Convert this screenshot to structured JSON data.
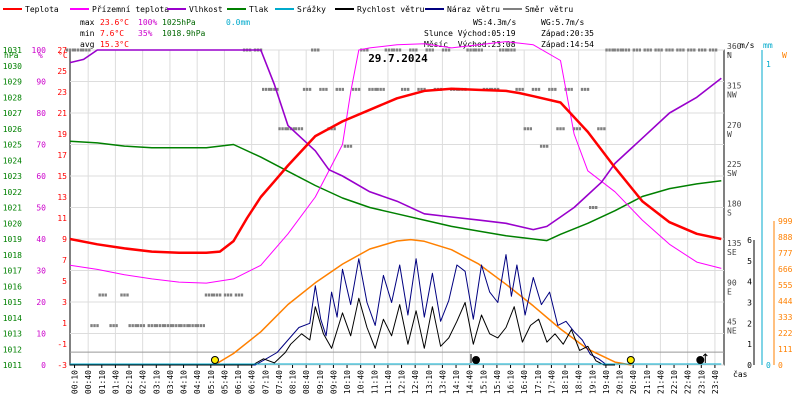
{
  "chart_data": {
    "type": "line",
    "title": "29.7.2024",
    "x_axis_unit": "čas",
    "x_ticks": [
      "00:10",
      "00:40",
      "01:10",
      "01:40",
      "02:10",
      "02:40",
      "03:10",
      "03:40",
      "04:10",
      "04:40",
      "05:10",
      "05:40",
      "06:10",
      "06:40",
      "07:10",
      "07:40",
      "08:10",
      "08:40",
      "09:10",
      "09:40",
      "10:10",
      "10:40",
      "11:10",
      "11:40",
      "12:10",
      "12:40",
      "13:10",
      "13:40",
      "14:10",
      "14:40",
      "15:10",
      "15:40",
      "16:10",
      "16:40",
      "17:10",
      "17:40",
      "18:10",
      "18:40",
      "19:10",
      "19:40",
      "20:10",
      "20:40",
      "21:10",
      "21:40",
      "22:10",
      "22:40",
      "23:10",
      "23:40"
    ],
    "left_axes": {
      "pressure": {
        "unit": "hPa",
        "color": "#008000",
        "ticks": [
          "1031",
          "1030",
          "1029",
          "1028",
          "1027",
          "1026",
          "1025",
          "1024",
          "1023",
          "1022",
          "1021",
          "1020",
          "1019",
          "1018",
          "1017",
          "1016",
          "1015",
          "1014",
          "1013",
          "1012",
          "1011"
        ]
      },
      "humidity": {
        "unit": "%",
        "color": "#cc00cc",
        "ticks": [
          "100",
          "90",
          "80",
          "70",
          "60",
          "50",
          "40",
          "30",
          "20",
          "10",
          "0"
        ]
      },
      "temperature": {
        "unit": "°C",
        "color": "#ff0000",
        "ticks": [
          "27",
          "25",
          "23",
          "21",
          "19",
          "17",
          "15",
          "13",
          "11",
          "9",
          "7",
          "5",
          "3",
          "1",
          "-1",
          "-3"
        ]
      }
    },
    "right_axes": {
      "direction": {
        "unit": "°",
        "ticks": [
          {
            "deg": "360",
            "dir": "N"
          },
          {
            "deg": "315",
            "dir": "NW"
          },
          {
            "deg": "270",
            "dir": "W"
          },
          {
            "deg": "225",
            "dir": "SW"
          },
          {
            "deg": "180",
            "dir": "S"
          },
          {
            "deg": "135",
            "dir": "SE"
          },
          {
            "deg": "90",
            "dir": "E"
          },
          {
            "deg": "45",
            "dir": "NE"
          }
        ]
      },
      "wind": {
        "unit": "m/s",
        "ticks": [
          "6",
          "5",
          "4",
          "3",
          "2",
          "1",
          "0"
        ]
      },
      "rain": {
        "unit": "mm",
        "color": "#00aacc",
        "ticks": [
          "1",
          "0"
        ]
      },
      "solar": {
        "unit": "W",
        "color": "#ff8000",
        "ticks": [
          "999",
          "888",
          "777",
          "666",
          "555",
          "444",
          "333",
          "222",
          "111",
          "0"
        ]
      }
    },
    "legend": [
      {
        "name": "Teplota",
        "color": "#ff0000"
      },
      {
        "name": "Přízemní teplota",
        "color": "#ff00ff"
      },
      {
        "name": "Vlhkost",
        "color": "#9900cc"
      },
      {
        "name": "Tlak",
        "color": "#008000"
      },
      {
        "name": "Srážky",
        "color": "#00aacc"
      },
      {
        "name": "Rychlost větru",
        "color": "#000000"
      },
      {
        "name": "Náraz větru",
        "color": "#000080"
      },
      {
        "name": "Směr větru",
        "color": "#808080"
      }
    ],
    "stats": {
      "max_label": "max",
      "max_temp": "23.6°C",
      "max_hum": "100%",
      "max_press": "1025hPa",
      "max_rain": "0.0mm",
      "min_label": "min",
      "min_temp": "7.6°C",
      "min_hum": "35%",
      "min_press": "1018.9hPa",
      "avg_label": "avg",
      "avg_temp": "15.3°C",
      "ws": "WS:4.3m/s",
      "wg": "WG:5.7m/s",
      "sun_rise": "Slunce Východ:05:19",
      "sun_set": "Západ:20:35",
      "moon_rise": "Měsíc  Východ:23:08",
      "moon_set": "Západ:14:54"
    },
    "series": {
      "temperature_C": {
        "x": [
          0,
          1,
          2,
          3,
          4,
          5,
          5.5,
          6,
          6.5,
          7,
          7.5,
          8,
          9,
          10,
          11,
          12,
          13,
          14,
          15,
          16,
          16.5,
          17,
          18,
          19,
          20,
          21,
          22,
          23,
          23.9
        ],
        "y": [
          9,
          8.5,
          8.1,
          7.8,
          7.7,
          7.7,
          7.8,
          8.8,
          11,
          13,
          14.5,
          16,
          18.8,
          20.2,
          21.3,
          22.4,
          23.1,
          23.3,
          23.2,
          23.1,
          22.9,
          22.6,
          22,
          19.2,
          15.8,
          12.6,
          10.6,
          9.5,
          9
        ]
      },
      "ground_temperature_C": {
        "x": [
          0,
          1,
          2,
          3,
          4,
          5,
          6,
          7,
          8,
          9,
          10,
          10.3,
          10.6,
          11,
          12,
          13,
          14,
          15,
          16,
          17,
          18,
          18.5,
          19,
          20,
          21,
          22,
          23,
          23.9
        ],
        "y": [
          6.5,
          6.1,
          5.6,
          5.2,
          4.9,
          4.8,
          5.2,
          6.5,
          9.5,
          13,
          18,
          23,
          27,
          27.2,
          27.5,
          27.6,
          27.2,
          27.5,
          27.8,
          27.5,
          26,
          19,
          15.5,
          13.5,
          10.8,
          8.5,
          6.8,
          6.2
        ]
      },
      "humidity_pct": {
        "x": [
          0,
          0.5,
          1,
          2,
          3,
          4,
          5,
          6,
          7,
          7.5,
          8,
          8.5,
          9,
          9.5,
          10,
          11,
          12,
          13,
          14,
          15,
          16,
          17,
          17.5,
          18,
          18.5,
          19,
          19.5,
          20,
          21,
          22,
          23,
          23.9
        ],
        "y": [
          96,
          97,
          100,
          100,
          100,
          100,
          100,
          100,
          100,
          89,
          76,
          72,
          68,
          62,
          60,
          55,
          52,
          48,
          47,
          46,
          45,
          43,
          44,
          47,
          50,
          54,
          58,
          64,
          72,
          80,
          85,
          91
        ]
      },
      "pressure_hPa": {
        "x": [
          0,
          1,
          2,
          3,
          4,
          5,
          6,
          7,
          8,
          9,
          10,
          11,
          12,
          13,
          14,
          15,
          16,
          17,
          17.5,
          18,
          19,
          20,
          21,
          22,
          23,
          23.9
        ],
        "y": [
          1025.2,
          1025.1,
          1024.9,
          1024.8,
          1024.8,
          1024.8,
          1025,
          1024.2,
          1023.3,
          1022.4,
          1021.6,
          1021,
          1020.6,
          1020.2,
          1019.8,
          1019.5,
          1019.2,
          1019,
          1018.9,
          1019.3,
          1020,
          1020.8,
          1021.7,
          1022.2,
          1022.5,
          1022.7
        ]
      },
      "solar_W": {
        "x": [
          5.3,
          6,
          7,
          8,
          9,
          10,
          11,
          12,
          12.5,
          13,
          14,
          15,
          16,
          17,
          18,
          19,
          20,
          20.6
        ],
        "y": [
          0,
          80,
          230,
          420,
          570,
          700,
          805,
          860,
          870,
          858,
          800,
          700,
          560,
          410,
          250,
          110,
          20,
          0
        ]
      },
      "wind_speed_ms": {
        "x": [
          0,
          6.7,
          7.1,
          7.5,
          7.9,
          8.1,
          8.5,
          8.8,
          9,
          9.3,
          9.6,
          10,
          10.3,
          10.6,
          10.9,
          11.2,
          11.5,
          11.8,
          12.1,
          12.4,
          12.7,
          13,
          13.3,
          13.6,
          13.9,
          14.2,
          14.5,
          14.8,
          15.1,
          15.4,
          15.7,
          16,
          16.3,
          16.6,
          16.9,
          17.2,
          17.5,
          17.8,
          18.1,
          18.4,
          18.7,
          19,
          19.3,
          19.6,
          20
        ],
        "y": [
          0,
          0,
          0.3,
          0.1,
          0.6,
          1,
          1.5,
          1.2,
          2.8,
          1.5,
          0.8,
          2.5,
          1.4,
          3.2,
          1.8,
          0.8,
          2.2,
          1.4,
          2.9,
          1,
          2.6,
          0.8,
          2.8,
          0.9,
          1.3,
          2.1,
          3,
          1,
          2.4,
          1.5,
          1.3,
          1.8,
          2.8,
          1.1,
          1.9,
          2.2,
          1.1,
          1.5,
          1,
          1.7,
          0.7,
          0.9,
          0.2,
          0,
          0
        ]
      },
      "wind_gust_ms": {
        "x": [
          0,
          6.8,
          7.2,
          7.6,
          8,
          8.4,
          8.8,
          9,
          9.2,
          9.4,
          9.6,
          9.8,
          10,
          10.3,
          10.6,
          10.9,
          11.2,
          11.5,
          11.8,
          12.1,
          12.4,
          12.7,
          13,
          13.3,
          13.6,
          13.9,
          14.2,
          14.5,
          14.8,
          15.1,
          15.4,
          15.7,
          16,
          16.2,
          16.4,
          16.7,
          17,
          17.3,
          17.6,
          17.9,
          18.2,
          18.5,
          18.8,
          19.1,
          19.4,
          19.7,
          20
        ],
        "y": [
          0,
          0,
          0.3,
          0.6,
          1.2,
          1.8,
          2,
          3.8,
          2.2,
          1.4,
          3.5,
          2.3,
          4.6,
          2.9,
          5.1,
          3,
          1.9,
          4.3,
          3,
          4.8,
          2.4,
          5.1,
          2.3,
          4.4,
          2.1,
          3.1,
          4.8,
          4.5,
          2.2,
          4.8,
          3.5,
          3,
          5.3,
          3.3,
          4.8,
          2.4,
          4.2,
          2.9,
          3.5,
          1.9,
          2.1,
          1.6,
          1.2,
          0.5,
          0.3,
          0,
          0
        ]
      },
      "wind_direction_deg": {
        "x": [
          0,
          0.3,
          0.6,
          0.9,
          1.2,
          1.6,
          2,
          2.3,
          2.6,
          3,
          3.3,
          3.6,
          3.9,
          4.2,
          4.5,
          4.8,
          5.1,
          5.4,
          5.8,
          6.2,
          6.5,
          6.9,
          7.2,
          7.5,
          7.8,
          8.1,
          8.4,
          8.7,
          9,
          9.3,
          9.6,
          9.9,
          10.2,
          10.5,
          10.8,
          11.1,
          11.4,
          11.7,
          12,
          12.3,
          12.6,
          12.9,
          13.2,
          13.5,
          13.8,
          14.1,
          14.4,
          14.7,
          15,
          15.3,
          15.6,
          15.9,
          16.2,
          16.5,
          16.8,
          17.1,
          17.4,
          17.7,
          18,
          18.3,
          18.6,
          18.9,
          19.2,
          19.5,
          19.8,
          20.1,
          20.4,
          20.8,
          21.2,
          21.6,
          22,
          22.4,
          22.8,
          23.2,
          23.6
        ],
        "y": [
          360,
          360,
          360,
          45,
          80,
          45,
          80,
          45,
          45,
          45,
          45,
          45,
          45,
          45,
          45,
          45,
          80,
          80,
          80,
          80,
          360,
          360,
          315,
          315,
          270,
          270,
          270,
          315,
          360,
          315,
          270,
          315,
          250,
          315,
          360,
          315,
          315,
          360,
          360,
          315,
          360,
          315,
          360,
          315,
          360,
          315,
          315,
          360,
          360,
          315,
          315,
          360,
          360,
          315,
          270,
          315,
          250,
          315,
          270,
          315,
          270,
          315,
          180,
          270,
          360,
          360,
          360,
          360,
          360,
          360,
          360,
          360,
          360,
          360,
          360
        ]
      },
      "rain_mm": {
        "x": [
          0,
          23.9
        ],
        "y": [
          0,
          0
        ]
      }
    },
    "markers": {
      "sunrise_hour": 5.32,
      "sunset_hour": 20.58,
      "moon_set_hour": 14.9,
      "moon_rise_hour": 23.13
    }
  }
}
